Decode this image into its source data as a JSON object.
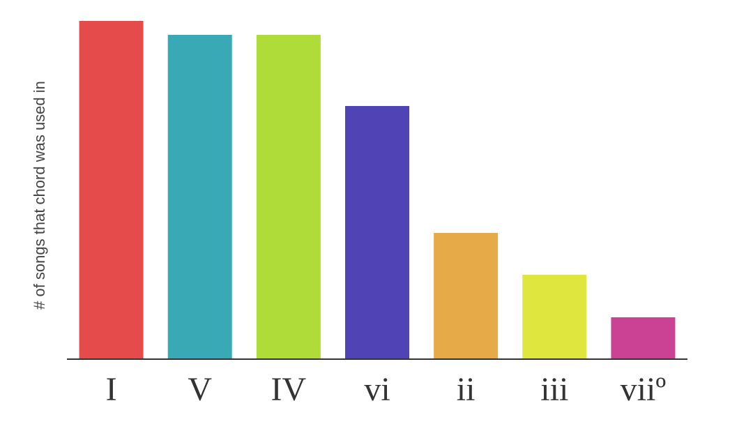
{
  "chart_data": {
    "type": "bar",
    "y_label": "# of songs that chord was used in",
    "categories": [
      "I",
      "V",
      "IV",
      "vi",
      "ii",
      "iii",
      "viiº"
    ],
    "values": [
      485,
      465,
      465,
      363,
      181,
      121,
      60
    ],
    "colors": [
      "#e54b4b",
      "#38a9b5",
      "#b0dc3a",
      "#4f43b5",
      "#e6ab48",
      "#dfe63e",
      "#cb4193"
    ],
    "ylim": [
      0,
      500
    ]
  }
}
